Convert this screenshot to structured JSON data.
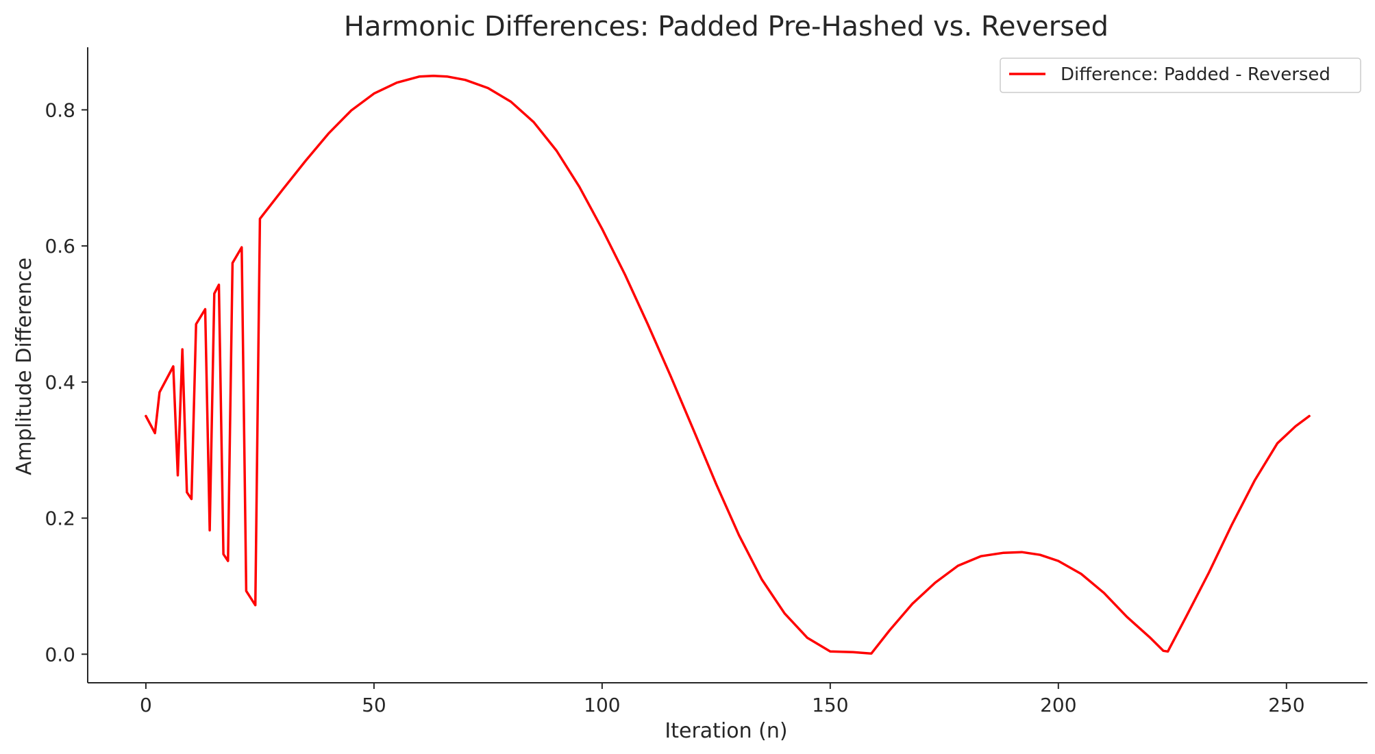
{
  "chart_data": {
    "type": "line",
    "title": "Harmonic Differences: Padded Pre-Hashed vs. Reversed",
    "xlabel": "Iteration (n)",
    "ylabel": "Amplitude Difference",
    "xlim": [
      -12.75,
      267.75
    ],
    "ylim": [
      -0.042,
      0.892
    ],
    "xticks": [
      0,
      50,
      100,
      150,
      200,
      250
    ],
    "yticks": [
      0.0,
      0.2,
      0.4,
      0.6,
      0.8
    ],
    "xtick_labels": [
      "0",
      "50",
      "100",
      "150",
      "200",
      "250"
    ],
    "ytick_labels": [
      "0.0",
      "0.2",
      "0.4",
      "0.6",
      "0.8"
    ],
    "grid": false,
    "legend_position": "top-right",
    "series": [
      {
        "name": "Difference: Padded - Reversed",
        "color": "#ff0000",
        "x": [
          0,
          2,
          3,
          6,
          7,
          8,
          9,
          10,
          11,
          13,
          14,
          15,
          16,
          17,
          18,
          19,
          21,
          22,
          24,
          25,
          30,
          35,
          40,
          45,
          50,
          55,
          60,
          63,
          66,
          70,
          75,
          80,
          85,
          90,
          95,
          100,
          105,
          110,
          115,
          120,
          125,
          130,
          135,
          140,
          145,
          150,
          155,
          159,
          163,
          168,
          173,
          178,
          183,
          188,
          192,
          196,
          200,
          205,
          210,
          215,
          220,
          223,
          224,
          228,
          233,
          238,
          243,
          248,
          252,
          255
        ],
        "y": [
          0.35,
          0.325,
          0.385,
          0.423,
          0.263,
          0.448,
          0.238,
          0.228,
          0.485,
          0.507,
          0.182,
          0.53,
          0.543,
          0.147,
          0.137,
          0.575,
          0.598,
          0.093,
          0.072,
          0.64,
          0.683,
          0.725,
          0.765,
          0.799,
          0.824,
          0.84,
          0.849,
          0.85,
          0.849,
          0.844,
          0.832,
          0.812,
          0.782,
          0.74,
          0.687,
          0.625,
          0.558,
          0.485,
          0.409,
          0.33,
          0.25,
          0.175,
          0.11,
          0.06,
          0.024,
          0.004,
          0.003,
          0.001,
          0.035,
          0.074,
          0.105,
          0.13,
          0.144,
          0.149,
          0.15,
          0.146,
          0.137,
          0.118,
          0.09,
          0.055,
          0.025,
          0.005,
          0.004,
          0.055,
          0.12,
          0.19,
          0.255,
          0.31,
          0.335,
          0.35
        ]
      }
    ]
  }
}
